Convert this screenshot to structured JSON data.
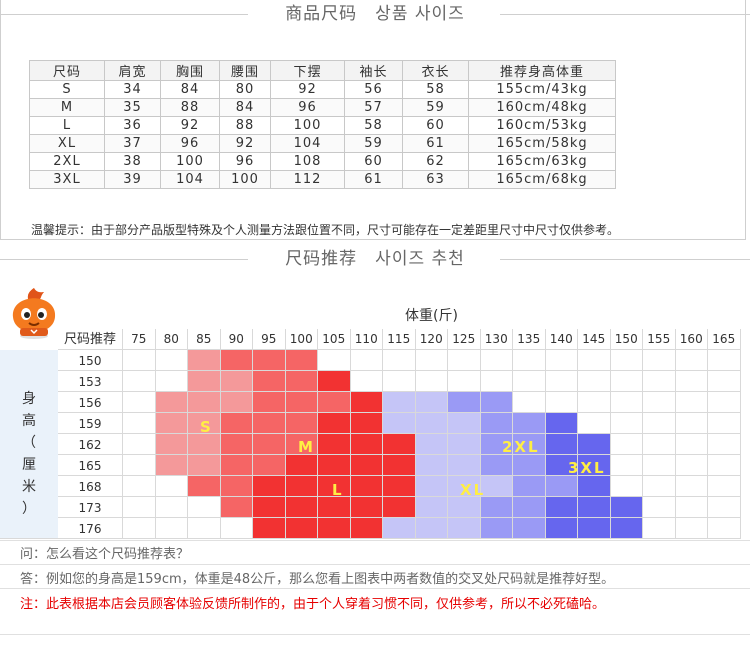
{
  "section1": {
    "title": "商品尺码　상품 사이즈",
    "table": {
      "headers": [
        "尺码",
        "肩宽",
        "胸围",
        "腰围",
        "下摆",
        "袖长",
        "衣长",
        "推荐身高体重"
      ],
      "rows": [
        [
          "S",
          "34",
          "84",
          "80",
          "92",
          "56",
          "58",
          "155cm/43kg"
        ],
        [
          "M",
          "35",
          "88",
          "84",
          "96",
          "57",
          "59",
          "160cm/48kg"
        ],
        [
          "L",
          "36",
          "92",
          "88",
          "100",
          "58",
          "60",
          "160cm/53kg"
        ],
        [
          "XL",
          "37",
          "96",
          "92",
          "104",
          "59",
          "61",
          "165cm/58kg"
        ],
        [
          "2XL",
          "38",
          "100",
          "96",
          "108",
          "60",
          "62",
          "165cm/63kg"
        ],
        [
          "3XL",
          "39",
          "104",
          "100",
          "112",
          "61",
          "63",
          "165cm/68kg"
        ]
      ]
    },
    "tip": "温馨提示：由于部分产品版型特殊及个人测量方法跟位置不同，尺寸可能存在一定差距里尺寸中尺寸仅供参考。"
  },
  "section2": {
    "title": "尺码推荐　사이즈 추천",
    "mascot_icon": "orange-mascot-icon",
    "weight_title": "体重(斤)",
    "corner_label": "尺码推荐",
    "height_label": [
      "身",
      "高",
      "（",
      "厘",
      "米",
      "）"
    ],
    "weights": [
      "75",
      "80",
      "85",
      "90",
      "95",
      "100",
      "105",
      "110",
      "115",
      "120",
      "125",
      "130",
      "135",
      "140",
      "145",
      "150",
      "155",
      "160",
      "165"
    ],
    "heights": [
      "150",
      "153",
      "156",
      "159",
      "162",
      "165",
      "168",
      "173",
      "176"
    ],
    "size_colors": {
      "S": "#f4999a",
      "M": "#f56565",
      "L": "#f23232",
      "XL": "#c5c5f7",
      "2XL": "#9a9af5",
      "3XL": "#6666ee"
    },
    "grid": [
      [
        "",
        "",
        "S",
        "M",
        "M",
        "M",
        "",
        "",
        "",
        "",
        "",
        "",
        "",
        "",
        "",
        "",
        "",
        "",
        ""
      ],
      [
        "",
        "",
        "S",
        "S",
        "M",
        "M",
        "L",
        "",
        "",
        "",
        "",
        "",
        "",
        "",
        "",
        "",
        "",
        "",
        ""
      ],
      [
        "",
        "S",
        "S",
        "S",
        "M",
        "M",
        "M",
        "L",
        "XL",
        "XL",
        "2XL",
        "2XL",
        "",
        "",
        "",
        "",
        "",
        "",
        ""
      ],
      [
        "",
        "S",
        "S",
        "M",
        "M",
        "M",
        "L",
        "L",
        "XL",
        "XL",
        "XL",
        "2XL",
        "2XL",
        "3XL",
        "",
        "",
        "",
        "",
        ""
      ],
      [
        "",
        "S",
        "S",
        "M",
        "M",
        "M",
        "L",
        "L",
        "L",
        "XL",
        "XL",
        "2XL",
        "2XL",
        "3XL",
        "3XL",
        "",
        "",
        "",
        ""
      ],
      [
        "",
        "S",
        "S",
        "M",
        "M",
        "L",
        "L",
        "L",
        "L",
        "XL",
        "XL",
        "2XL",
        "2XL",
        "3XL",
        "3XL",
        "",
        "",
        "",
        ""
      ],
      [
        "",
        "",
        "M",
        "M",
        "L",
        "L",
        "L",
        "L",
        "L",
        "XL",
        "XL",
        "XL",
        "2XL",
        "2XL",
        "3XL",
        "",
        "",
        "",
        ""
      ],
      [
        "",
        "",
        "",
        "M",
        "L",
        "L",
        "L",
        "L",
        "L",
        "XL",
        "XL",
        "2XL",
        "2XL",
        "3XL",
        "3XL",
        "3XL",
        "",
        "",
        ""
      ],
      [
        "",
        "",
        "",
        "",
        "L",
        "L",
        "L",
        "L",
        "XL",
        "XL",
        "XL",
        "2XL",
        "2XL",
        "3XL",
        "3XL",
        "3XL",
        "",
        "",
        ""
      ]
    ],
    "zone_labels": [
      {
        "text": "S"
      },
      {
        "text": "M"
      },
      {
        "text": "L"
      },
      {
        "text": "XL"
      },
      {
        "text": "2XL"
      },
      {
        "text": "3XL"
      }
    ],
    "question": "问：怎么看这个尺码推荐表？",
    "answer": "答：例如您的身高是159cm，体重是48公斤，那么您看上图表中两者数值的交叉处尺码就是推荐好型。",
    "note": "注：此表根据本店会员顾客体验反馈所制作的，由于个人穿着习惯不同，仅供参考，所以不必死磕哈。"
  }
}
